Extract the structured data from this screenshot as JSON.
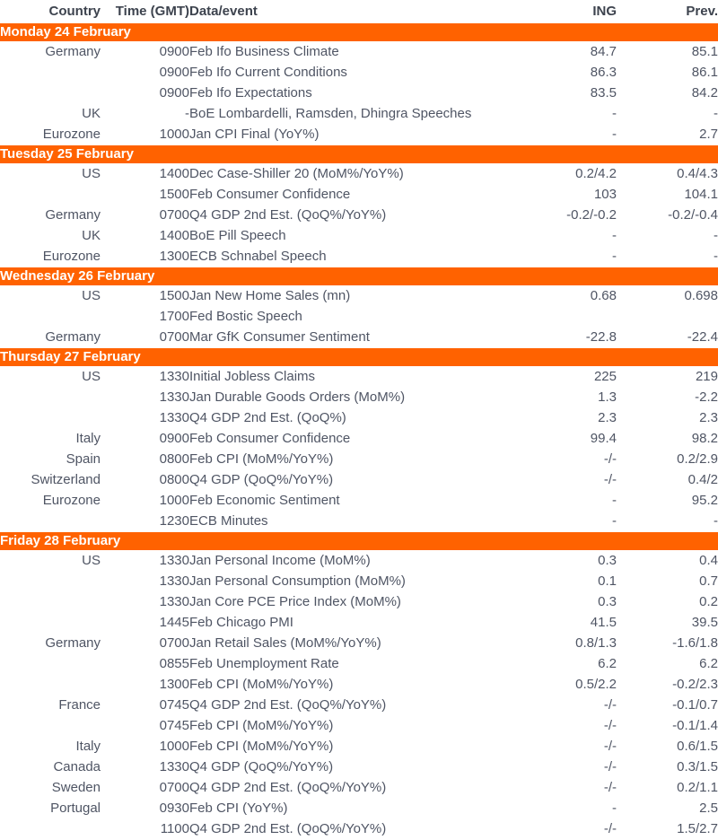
{
  "colors": {
    "accent_orange": "#FF6200",
    "day_bar_text": "#FFFFFF",
    "header_text": "#3D434E",
    "body_text": "#4F5564",
    "background": "#FFFFFF"
  },
  "table": {
    "headers": {
      "country": "Country",
      "time": "Time (GMT)",
      "event": "Data/event",
      "ing": "ING",
      "prev": "Prev."
    },
    "sections": [
      {
        "day": "Monday 24 February",
        "rows": [
          {
            "country": "Germany",
            "time": "0900",
            "event": "Feb Ifo Business Climate",
            "ing": "84.7",
            "prev": "85.1"
          },
          {
            "country": "",
            "time": "0900",
            "event": "Feb Ifo Current Conditions",
            "ing": "86.3",
            "prev": "86.1"
          },
          {
            "country": "",
            "time": "0900",
            "event": "Feb Ifo Expectations",
            "ing": "83.5",
            "prev": "84.2"
          },
          {
            "country": "UK",
            "time": "-",
            "event": "BoE Lombardelli, Ramsden, Dhingra Speeches",
            "ing": "-",
            "prev": "-"
          },
          {
            "country": "Eurozone",
            "time": "1000",
            "event": "Jan CPI Final (YoY%)",
            "ing": "-",
            "prev": "2.7"
          }
        ]
      },
      {
        "day": "Tuesday 25 February",
        "rows": [
          {
            "country": "US",
            "time": "1400",
            "event": "Dec Case-Shiller 20 (MoM%/YoY%)",
            "ing": "0.2/4.2",
            "prev": "0.4/4.3"
          },
          {
            "country": "",
            "time": "1500",
            "event": "Feb Consumer Confidence",
            "ing": "103",
            "prev": "104.1"
          },
          {
            "country": "Germany",
            "time": "0700",
            "event": "Q4 GDP 2nd Est. (QoQ%/YoY%)",
            "ing": "-0.2/-0.2",
            "prev": "-0.2/-0.4"
          },
          {
            "country": "UK",
            "time": "1400",
            "event": "BoE Pill Speech",
            "ing": "-",
            "prev": "-"
          },
          {
            "country": "Eurozone",
            "time": "1300",
            "event": "ECB Schnabel Speech",
            "ing": "-",
            "prev": "-"
          }
        ]
      },
      {
        "day": "Wednesday 26 February",
        "rows": [
          {
            "country": "US",
            "time": "1500",
            "event": "Jan New Home Sales (mn)",
            "ing": "0.68",
            "prev": "0.698"
          },
          {
            "country": "",
            "time": "1700",
            "event": "Fed Bostic Speech",
            "ing": "",
            "prev": ""
          },
          {
            "country": "Germany",
            "time": "0700",
            "event": "Mar GfK Consumer Sentiment",
            "ing": "-22.8",
            "prev": "-22.4"
          }
        ]
      },
      {
        "day": "Thursday 27 February",
        "rows": [
          {
            "country": "US",
            "time": "1330",
            "event": "Initial Jobless Claims",
            "ing": "225",
            "prev": "219"
          },
          {
            "country": "",
            "time": "1330",
            "event": "Jan Durable Goods Orders (MoM%)",
            "ing": "1.3",
            "prev": "-2.2"
          },
          {
            "country": "",
            "time": "1330",
            "event": "Q4 GDP 2nd Est. (QoQ%)",
            "ing": "2.3",
            "prev": "2.3"
          },
          {
            "country": "Italy",
            "time": "0900",
            "event": "Feb Consumer Confidence",
            "ing": "99.4",
            "prev": "98.2"
          },
          {
            "country": "Spain",
            "time": "0800",
            "event": "Feb CPI (MoM%/YoY%)",
            "ing": "-/-",
            "prev": "0.2/2.9"
          },
          {
            "country": "Switzerland",
            "time": "0800",
            "event": "Q4 GDP (QoQ%/YoY%)",
            "ing": "-/-",
            "prev": "0.4/2"
          },
          {
            "country": "Eurozone",
            "time": "1000",
            "event": "Feb Economic Sentiment",
            "ing": "-",
            "prev": "95.2"
          },
          {
            "country": "",
            "time": "1230",
            "event": "ECB Minutes",
            "ing": "-",
            "prev": "-"
          }
        ]
      },
      {
        "day": "Friday 28 February",
        "rows": [
          {
            "country": "US",
            "time": "1330",
            "event": "Jan Personal Income (MoM%)",
            "ing": "0.3",
            "prev": "0.4"
          },
          {
            "country": "",
            "time": "1330",
            "event": "Jan Personal Consumption (MoM%)",
            "ing": "0.1",
            "prev": "0.7"
          },
          {
            "country": "",
            "time": "1330",
            "event": "Jan Core PCE Price Index (MoM%)",
            "ing": "0.3",
            "prev": "0.2"
          },
          {
            "country": "",
            "time": "1445",
            "event": "Feb Chicago PMI",
            "ing": "41.5",
            "prev": "39.5"
          },
          {
            "country": "Germany",
            "time": "0700",
            "event": "Jan Retail Sales (MoM%/YoY%)",
            "ing": "0.8/1.3",
            "prev": "-1.6/1.8"
          },
          {
            "country": "",
            "time": "0855",
            "event": "Feb Unemployment Rate",
            "ing": "6.2",
            "prev": "6.2"
          },
          {
            "country": "",
            "time": "1300",
            "event": "Feb CPI (MoM%/YoY%)",
            "ing": "0.5/2.2",
            "prev": "-0.2/2.3"
          },
          {
            "country": "France",
            "time": "0745",
            "event": "Q4 GDP 2nd Est. (QoQ%/YoY%)",
            "ing": "-/-",
            "prev": "-0.1/0.7"
          },
          {
            "country": "",
            "time": "0745",
            "event": "Feb CPI (MoM%/YoY%)",
            "ing": "-/-",
            "prev": "-0.1/1.4"
          },
          {
            "country": "Italy",
            "time": "1000",
            "event": "Feb CPI (MoM%/YoY%)",
            "ing": "-/-",
            "prev": "0.6/1.5"
          },
          {
            "country": "Canada",
            "time": "1330",
            "event": "Q4 GDP (QoQ%/YoY%)",
            "ing": "-/-",
            "prev": "0.3/1.5"
          },
          {
            "country": "Sweden",
            "time": "0700",
            "event": "Q4 GDP 2nd Est. (QoQ%/YoY%)",
            "ing": "-/-",
            "prev": "0.2/1.1"
          },
          {
            "country": "Portugal",
            "time": "0930",
            "event": "Feb CPI (YoY%)",
            "ing": "-",
            "prev": "2.5"
          },
          {
            "country": "",
            "time": "1100",
            "event": "Q4 GDP 2nd Est. (QoQ%/YoY%)",
            "ing": "-/-",
            "prev": "1.5/2.7"
          }
        ]
      }
    ]
  }
}
